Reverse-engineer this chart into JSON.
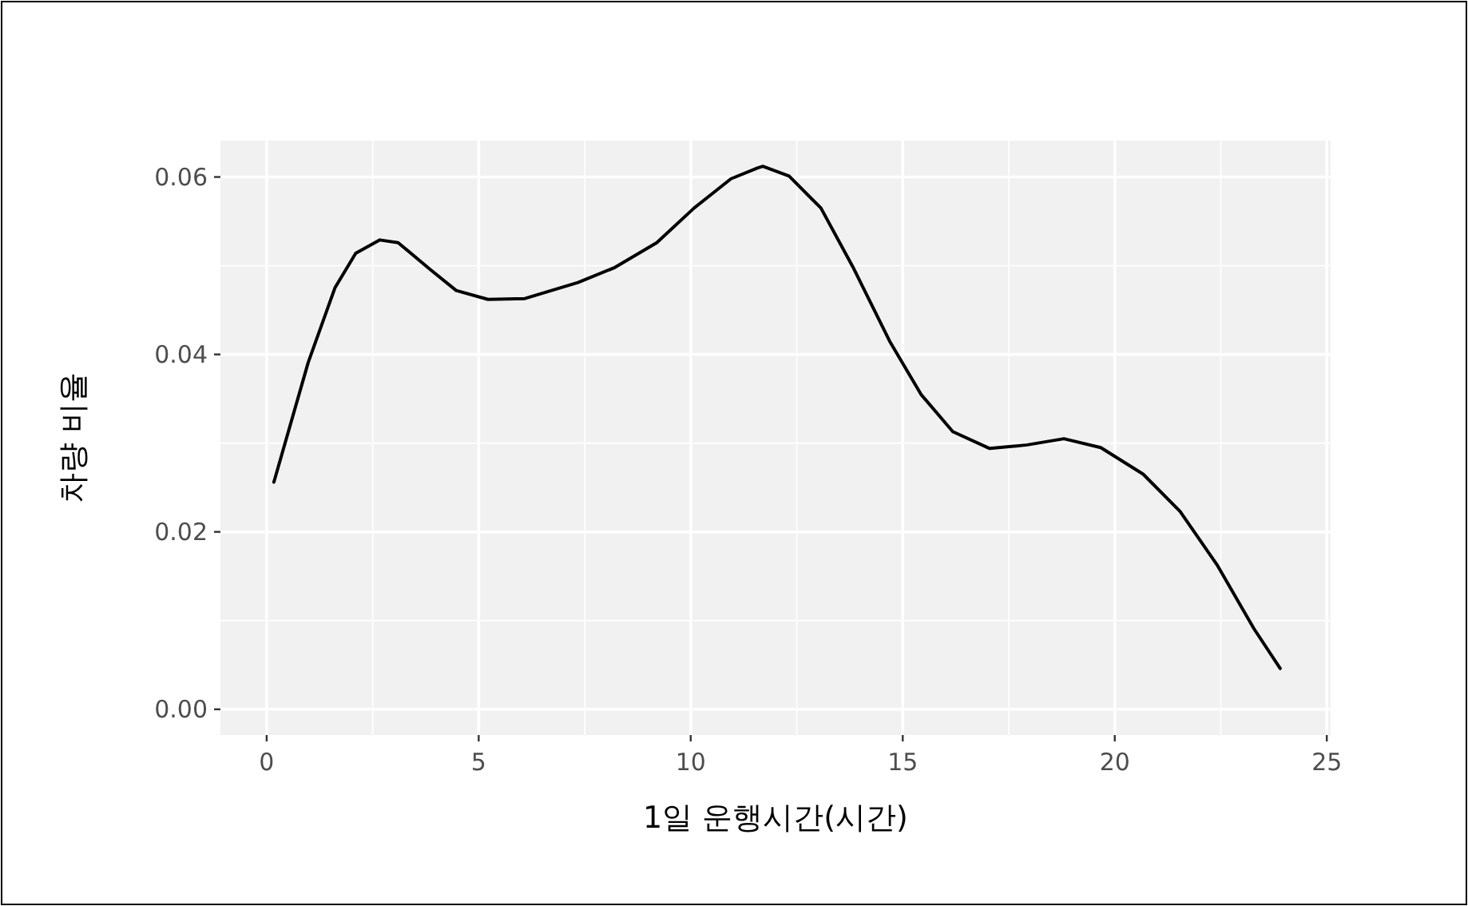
{
  "chart_data": {
    "type": "line",
    "xlabel": "1일 운행시간(시간)",
    "ylabel": "차량 비율",
    "x": [
      0.17,
      0.98,
      1.61,
      2.1,
      2.67,
      3.1,
      3.85,
      4.47,
      5.22,
      6.09,
      7.34,
      8.21,
      9.2,
      10.08,
      10.95,
      11.57,
      11.7,
      12.32,
      13.07,
      13.82,
      14.69,
      15.43,
      16.18,
      17.05,
      17.93,
      18.8,
      19.67,
      20.67,
      21.54,
      22.41,
      23.28,
      23.9
    ],
    "series": [
      {
        "color": "#000000",
        "values": [
          0.0256,
          0.0391,
          0.0475,
          0.0514,
          0.0529,
          0.0526,
          0.0496,
          0.0472,
          0.0462,
          0.0463,
          0.0481,
          0.0498,
          0.0526,
          0.0565,
          0.0598,
          0.061,
          0.0612,
          0.0601,
          0.0565,
          0.0499,
          0.0415,
          0.0355,
          0.0313,
          0.0294,
          0.0298,
          0.0305,
          0.0295,
          0.0265,
          0.0223,
          0.0163,
          0.0091,
          0.0046
        ]
      }
    ],
    "xlim": [
      -1.09,
      25.09
    ],
    "ylim": [
      -0.0029,
      0.0641
    ],
    "xticks": [
      0,
      5,
      10,
      15,
      20,
      25
    ],
    "yticks": [
      {
        "value": 0,
        "label": "0.00"
      },
      {
        "value": 0.02,
        "label": "0.02"
      },
      {
        "value": 0.04,
        "label": "0.04"
      },
      {
        "value": 0.06,
        "label": "0.06"
      }
    ],
    "grid": true,
    "marker": "none",
    "line_style": "solid"
  }
}
